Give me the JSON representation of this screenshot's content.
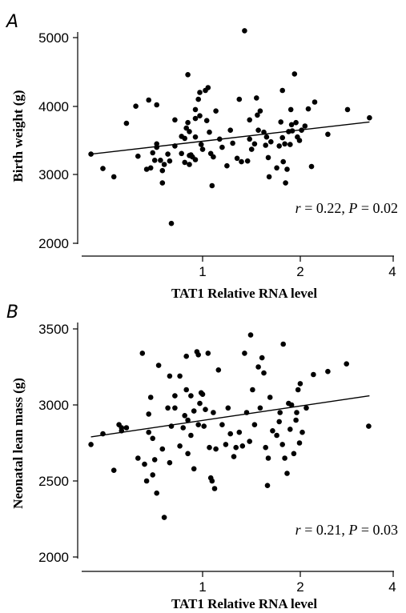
{
  "chart_data": [
    {
      "type": "scatter",
      "panel": "A",
      "xlabel": "TAT1 Relative RNA level",
      "ylabel": "Birth weight (g)",
      "xscale": "log",
      "xticks": [
        1,
        2,
        4
      ],
      "yticks": [
        2000,
        3000,
        4000,
        5000
      ],
      "xlim": [
        0.43,
        4.2
      ],
      "ylim": [
        1950,
        5150
      ],
      "annotation": {
        "r_label": "r",
        "r_value": "= 0.22,",
        "p_label": "P",
        "p_value": "= 0.02"
      },
      "fit_line": {
        "x": [
          0.45,
          3.3
        ],
        "y": [
          3300,
          3770
        ]
      },
      "points": [
        [
          0.45,
          3300
        ],
        [
          0.49,
          3090
        ],
        [
          0.53,
          2970
        ],
        [
          0.58,
          3750
        ],
        [
          0.62,
          4000
        ],
        [
          0.63,
          3270
        ],
        [
          0.67,
          3080
        ],
        [
          0.68,
          4090
        ],
        [
          0.69,
          3100
        ],
        [
          0.7,
          3320
        ],
        [
          0.71,
          3210
        ],
        [
          0.72,
          4020
        ],
        [
          0.72,
          3400
        ],
        [
          0.72,
          3450
        ],
        [
          0.74,
          3210
        ],
        [
          0.75,
          3060
        ],
        [
          0.75,
          2880
        ],
        [
          0.76,
          3150
        ],
        [
          0.78,
          3300
        ],
        [
          0.79,
          3200
        ],
        [
          0.8,
          2290
        ],
        [
          0.82,
          3800
        ],
        [
          0.82,
          3420
        ],
        [
          0.86,
          3560
        ],
        [
          0.86,
          3310
        ],
        [
          0.88,
          3530
        ],
        [
          0.88,
          3180
        ],
        [
          0.89,
          3680
        ],
        [
          0.9,
          4460
        ],
        [
          0.9,
          3760
        ],
        [
          0.91,
          3630
        ],
        [
          0.91,
          3280
        ],
        [
          0.91,
          3150
        ],
        [
          0.92,
          3290
        ],
        [
          0.93,
          3260
        ],
        [
          0.95,
          3950
        ],
        [
          0.95,
          3550
        ],
        [
          0.95,
          3220
        ],
        [
          0.95,
          3820
        ],
        [
          0.97,
          4100
        ],
        [
          0.98,
          4200
        ],
        [
          0.98,
          3860
        ],
        [
          0.99,
          3440
        ],
        [
          1.0,
          3370
        ],
        [
          1.02,
          4230
        ],
        [
          1.03,
          3790
        ],
        [
          1.04,
          4270
        ],
        [
          1.05,
          3620
        ],
        [
          1.06,
          3310
        ],
        [
          1.07,
          2840
        ],
        [
          1.08,
          3260
        ],
        [
          1.1,
          3930
        ],
        [
          1.13,
          3520
        ],
        [
          1.15,
          3400
        ],
        [
          1.19,
          3130
        ],
        [
          1.22,
          3650
        ],
        [
          1.24,
          3460
        ],
        [
          1.28,
          3240
        ],
        [
          1.3,
          4100
        ],
        [
          1.32,
          3190
        ],
        [
          1.35,
          5100
        ],
        [
          1.38,
          3200
        ],
        [
          1.4,
          3800
        ],
        [
          1.4,
          3520
        ],
        [
          1.42,
          3370
        ],
        [
          1.45,
          3450
        ],
        [
          1.47,
          4120
        ],
        [
          1.48,
          3870
        ],
        [
          1.49,
          3650
        ],
        [
          1.51,
          3930
        ],
        [
          1.55,
          3620
        ],
        [
          1.57,
          3430
        ],
        [
          1.58,
          3550
        ],
        [
          1.6,
          3250
        ],
        [
          1.61,
          2970
        ],
        [
          1.63,
          3480
        ],
        [
          1.7,
          3100
        ],
        [
          1.73,
          3420
        ],
        [
          1.75,
          3770
        ],
        [
          1.77,
          3540
        ],
        [
          1.77,
          4230
        ],
        [
          1.78,
          3190
        ],
        [
          1.8,
          3450
        ],
        [
          1.81,
          2880
        ],
        [
          1.83,
          3080
        ],
        [
          1.85,
          3630
        ],
        [
          1.87,
          3440
        ],
        [
          1.88,
          3950
        ],
        [
          1.89,
          3730
        ],
        [
          1.9,
          3640
        ],
        [
          1.93,
          4470
        ],
        [
          1.95,
          3760
        ],
        [
          1.97,
          3550
        ],
        [
          2.0,
          3500
        ],
        [
          2.03,
          3650
        ],
        [
          2.08,
          3710
        ],
        [
          2.13,
          3960
        ],
        [
          2.18,
          3120
        ],
        [
          2.23,
          4060
        ],
        [
          2.45,
          3590
        ],
        [
          2.82,
          3950
        ],
        [
          3.3,
          3830
        ]
      ]
    },
    {
      "type": "scatter",
      "panel": "B",
      "xlabel": "TAT1 Relative RNA level",
      "ylabel": "Neonatal lean mass (g)",
      "xscale": "log",
      "xticks": [
        1,
        2,
        4
      ],
      "yticks": [
        2000,
        2500,
        3000,
        3500
      ],
      "xlim": [
        0.43,
        4.2
      ],
      "ylim": [
        1980,
        3550
      ],
      "annotation": {
        "r_label": "r",
        "r_value": "= 0.21,",
        "p_label": "P",
        "p_value": "= 0.03"
      },
      "fit_line": {
        "x": [
          0.45,
          3.3
        ],
        "y": [
          2790,
          3060
        ]
      },
      "points": [
        [
          0.45,
          2740
        ],
        [
          0.49,
          2810
        ],
        [
          0.53,
          2570
        ],
        [
          0.55,
          2870
        ],
        [
          0.56,
          2850
        ],
        [
          0.56,
          2830
        ],
        [
          0.58,
          2850
        ],
        [
          0.63,
          2650
        ],
        [
          0.65,
          3340
        ],
        [
          0.66,
          2610
        ],
        [
          0.67,
          2500
        ],
        [
          0.68,
          2940
        ],
        [
          0.68,
          2820
        ],
        [
          0.69,
          3050
        ],
        [
          0.7,
          2780
        ],
        [
          0.7,
          2540
        ],
        [
          0.71,
          2640
        ],
        [
          0.72,
          2420
        ],
        [
          0.73,
          3260
        ],
        [
          0.75,
          2710
        ],
        [
          0.76,
          2260
        ],
        [
          0.78,
          2980
        ],
        [
          0.79,
          3190
        ],
        [
          0.79,
          2620
        ],
        [
          0.8,
          2860
        ],
        [
          0.82,
          3060
        ],
        [
          0.82,
          2980
        ],
        [
          0.85,
          3190
        ],
        [
          0.85,
          2730
        ],
        [
          0.87,
          2850
        ],
        [
          0.88,
          2930
        ],
        [
          0.89,
          3100
        ],
        [
          0.89,
          3320
        ],
        [
          0.9,
          2680
        ],
        [
          0.9,
          2900
        ],
        [
          0.92,
          3060
        ],
        [
          0.92,
          2800
        ],
        [
          0.94,
          2960
        ],
        [
          0.94,
          2580
        ],
        [
          0.96,
          3350
        ],
        [
          0.97,
          3330
        ],
        [
          0.97,
          2870
        ],
        [
          0.98,
          3010
        ],
        [
          0.99,
          3080
        ],
        [
          1.0,
          3070
        ],
        [
          1.01,
          2860
        ],
        [
          1.02,
          2970
        ],
        [
          1.04,
          3340
        ],
        [
          1.05,
          2720
        ],
        [
          1.06,
          2520
        ],
        [
          1.07,
          2500
        ],
        [
          1.08,
          2950
        ],
        [
          1.09,
          2450
        ],
        [
          1.1,
          2710
        ],
        [
          1.12,
          3230
        ],
        [
          1.15,
          2870
        ],
        [
          1.18,
          2740
        ],
        [
          1.2,
          2980
        ],
        [
          1.22,
          2810
        ],
        [
          1.25,
          2660
        ],
        [
          1.27,
          2720
        ],
        [
          1.3,
          2820
        ],
        [
          1.33,
          2730
        ],
        [
          1.35,
          3340
        ],
        [
          1.37,
          2950
        ],
        [
          1.4,
          2760
        ],
        [
          1.41,
          3460
        ],
        [
          1.43,
          3100
        ],
        [
          1.45,
          2870
        ],
        [
          1.49,
          3250
        ],
        [
          1.51,
          2980
        ],
        [
          1.53,
          3310
        ],
        [
          1.55,
          3210
        ],
        [
          1.57,
          2720
        ],
        [
          1.59,
          2470
        ],
        [
          1.6,
          2650
        ],
        [
          1.62,
          3050
        ],
        [
          1.65,
          2830
        ],
        [
          1.7,
          2800
        ],
        [
          1.73,
          2890
        ],
        [
          1.74,
          2950
        ],
        [
          1.77,
          2740
        ],
        [
          1.78,
          3400
        ],
        [
          1.8,
          2650
        ],
        [
          1.83,
          2550
        ],
        [
          1.85,
          3010
        ],
        [
          1.87,
          2840
        ],
        [
          1.89,
          3000
        ],
        [
          1.92,
          2680
        ],
        [
          1.95,
          2900
        ],
        [
          1.96,
          2950
        ],
        [
          1.98,
          3100
        ],
        [
          2.0,
          2750
        ],
        [
          2.01,
          3140
        ],
        [
          2.04,
          2820
        ],
        [
          2.1,
          2980
        ],
        [
          2.21,
          3200
        ],
        [
          2.45,
          3220
        ],
        [
          2.8,
          3270
        ],
        [
          3.28,
          2860
        ]
      ]
    }
  ],
  "panels": {
    "a": {
      "letter": "A",
      "xlabel": "TAT1 Relative RNA level",
      "ylabel": "Birth weight (g)",
      "xtick_labels": [
        "1",
        "2",
        "4"
      ],
      "ytick_labels": [
        "2000",
        "3000",
        "4000",
        "5000"
      ],
      "annot": {
        "r": "r",
        "r_rest": " = 0.22, ",
        "p": "P",
        "p_rest": " = 0.02"
      }
    },
    "b": {
      "letter": "B",
      "xlabel": "TAT1 Relative RNA level",
      "ylabel": "Neonatal lean mass (g)",
      "xtick_labels": [
        "1",
        "2",
        "4"
      ],
      "ytick_labels": [
        "2000",
        "2500",
        "3000",
        "3500"
      ],
      "annot": {
        "r": "r",
        "r_rest": " = 0.21, ",
        "p": "P",
        "p_rest": " = 0.03"
      }
    }
  }
}
